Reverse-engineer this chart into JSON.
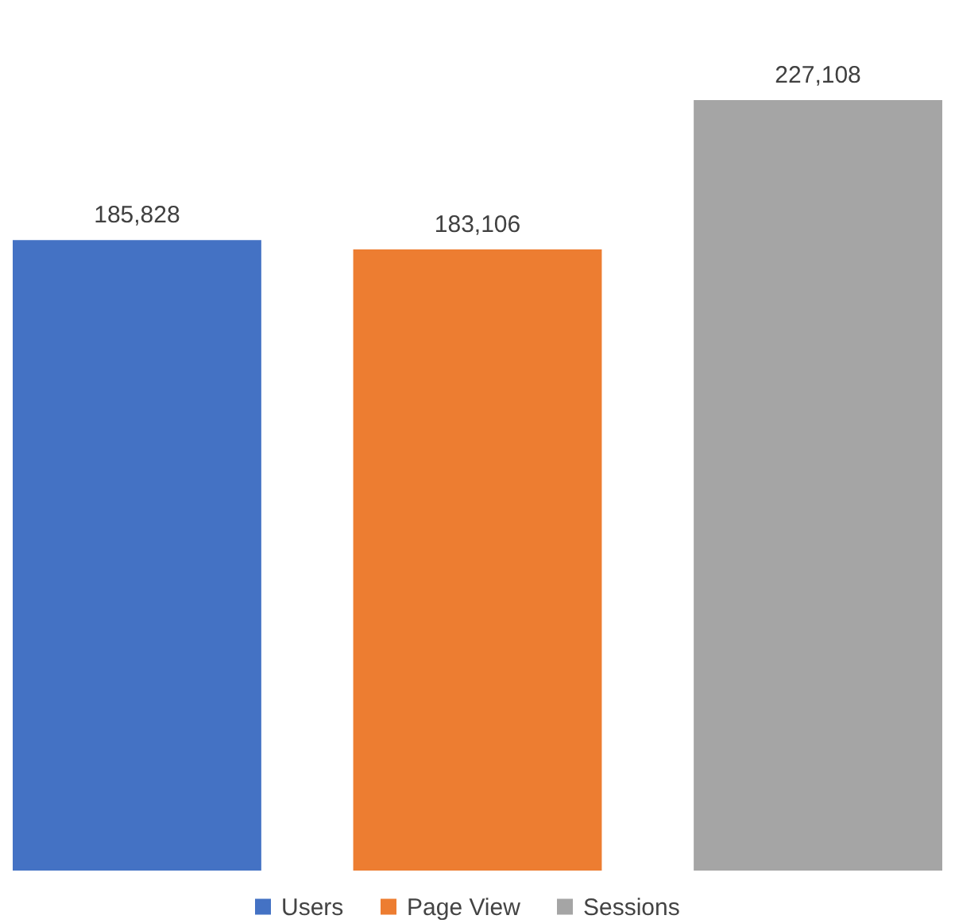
{
  "chart_data": {
    "type": "bar",
    "categories": [
      null
    ],
    "series": [
      {
        "name": "Users",
        "color": "#4472c4",
        "values": [
          185828
        ],
        "value_labels": [
          "185,828"
        ]
      },
      {
        "name": "Page View",
        "color": "#ed7d31",
        "values": [
          183106
        ],
        "value_labels": [
          "183,106"
        ]
      },
      {
        "name": "Sessions",
        "color": "#a5a5a5",
        "values": [
          227108
        ],
        "value_labels": [
          "227,108"
        ]
      }
    ],
    "legend": "bottom"
  }
}
